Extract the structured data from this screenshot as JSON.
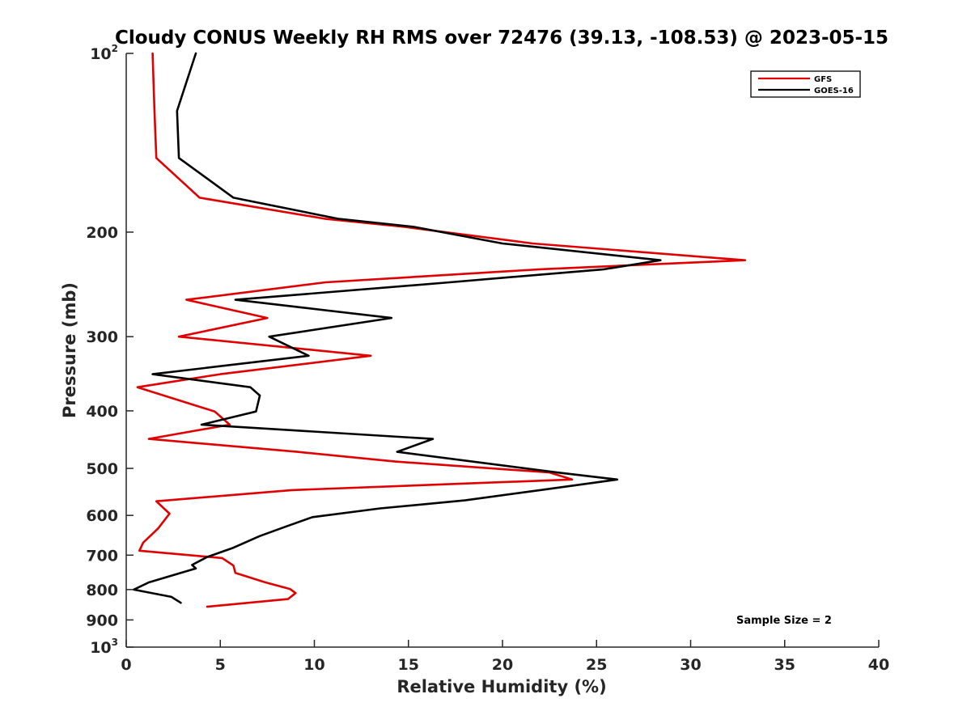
{
  "chart_data": {
    "type": "line",
    "title": "Cloudy CONUS Weekly RH RMS over 72476 (39.13, -108.53) @ 2023-05-15",
    "xlabel": "Relative Humidity (%)",
    "ylabel": "Pressure (mb)",
    "xlim": [
      0,
      40
    ],
    "ylim": [
      100,
      1000
    ],
    "y_scale": "log",
    "y_reversed": true,
    "x_ticks": [
      0,
      5,
      10,
      15,
      20,
      25,
      30,
      35,
      40
    ],
    "x_tick_labels": [
      "0",
      "5",
      "10",
      "15",
      "20",
      "25",
      "30",
      "35",
      "40"
    ],
    "y_ticks": [
      100,
      200,
      300,
      400,
      500,
      600,
      700,
      800,
      900,
      1000
    ],
    "y_tick_labels": [
      {
        "base": "10",
        "sup": "2"
      },
      {
        "base": "200"
      },
      {
        "base": "300"
      },
      {
        "base": "400"
      },
      {
        "base": "500"
      },
      {
        "base": "600"
      },
      {
        "base": "700"
      },
      {
        "base": "800"
      },
      {
        "base": "900"
      },
      {
        "base": "10",
        "sup": "3"
      }
    ],
    "grid": false,
    "legend_position": "top-right",
    "annotation": "Sample Size = 2",
    "series": [
      {
        "name": "GFS",
        "color": "#e00000",
        "points": [
          [
            1.4,
            100
          ],
          [
            1.5,
            125
          ],
          [
            1.6,
            150
          ],
          [
            3.9,
            175
          ],
          [
            10.6,
            190
          ],
          [
            14.8,
            196
          ],
          [
            21.6,
            209
          ],
          [
            32.9,
            223
          ],
          [
            22.0,
            231
          ],
          [
            10.6,
            243
          ],
          [
            3.2,
            260
          ],
          [
            7.5,
            279
          ],
          [
            2.8,
            300
          ],
          [
            13.0,
            323
          ],
          [
            5.0,
            347
          ],
          [
            0.6,
            365
          ],
          [
            4.7,
            401
          ],
          [
            5.5,
            422
          ],
          [
            1.2,
            446
          ],
          [
            9.1,
            469
          ],
          [
            14.3,
            487
          ],
          [
            22.5,
            508
          ],
          [
            23.7,
            522
          ],
          [
            8.8,
            544
          ],
          [
            1.6,
            568
          ],
          [
            2.3,
            596
          ],
          [
            1.7,
            631
          ],
          [
            0.9,
            667
          ],
          [
            0.7,
            688
          ],
          [
            5.1,
            708
          ],
          [
            5.7,
            729
          ],
          [
            5.8,
            750
          ],
          [
            7.4,
            778
          ],
          [
            8.7,
            798
          ],
          [
            9.0,
            811
          ],
          [
            8.6,
            830
          ],
          [
            4.3,
            855
          ]
        ]
      },
      {
        "name": "GOES-16",
        "color": "#000000",
        "points": [
          [
            3.7,
            100
          ],
          [
            2.7,
            125
          ],
          [
            2.8,
            150
          ],
          [
            5.7,
            175
          ],
          [
            11.3,
            190
          ],
          [
            15.3,
            196
          ],
          [
            20.0,
            209
          ],
          [
            28.4,
            223
          ],
          [
            25.4,
            231
          ],
          [
            17.2,
            243
          ],
          [
            5.8,
            260
          ],
          [
            14.1,
            279
          ],
          [
            7.6,
            300
          ],
          [
            9.7,
            323
          ],
          [
            1.4,
            347
          ],
          [
            6.6,
            365
          ],
          [
            7.1,
            377
          ],
          [
            6.9,
            401
          ],
          [
            4.0,
            422
          ],
          [
            16.3,
            446
          ],
          [
            14.4,
            469
          ],
          [
            22.9,
            508
          ],
          [
            26.1,
            522
          ],
          [
            22.0,
            544
          ],
          [
            18.0,
            566
          ],
          [
            13.5,
            584
          ],
          [
            9.9,
            604
          ],
          [
            8.4,
            628
          ],
          [
            7.1,
            650
          ],
          [
            5.7,
            680
          ],
          [
            4.3,
            705
          ],
          [
            3.5,
            727
          ],
          [
            3.7,
            737
          ],
          [
            2.9,
            750
          ],
          [
            1.2,
            778
          ],
          [
            0.4,
            800
          ],
          [
            2.4,
            823
          ],
          [
            2.9,
            842
          ]
        ]
      }
    ]
  }
}
